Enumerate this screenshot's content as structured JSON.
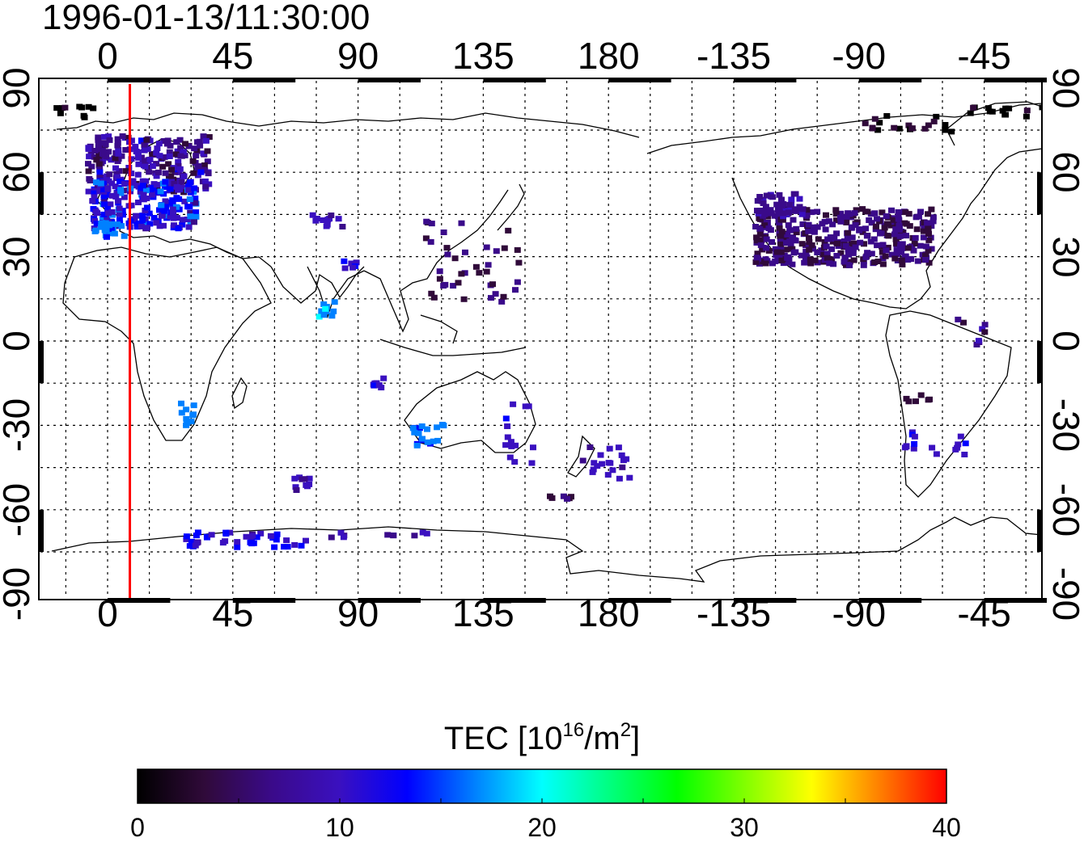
{
  "title": "1996-01-13/11:30:00",
  "lon_ticks": [
    "0",
    "45",
    "90",
    "135",
    "180",
    "-135",
    "-90",
    "-45"
  ],
  "lat_ticks": [
    "90",
    "60",
    "30",
    "0",
    "-30",
    "-60",
    "-90"
  ],
  "colorbar": {
    "label_main": "TEC  [10",
    "label_exp1": "16",
    "label_mid": "/m",
    "label_exp2": "2",
    "label_end": "]",
    "ticks": [
      "0",
      "10",
      "20",
      "30",
      "40"
    ],
    "min": 0,
    "max": 40,
    "stops": [
      "#000000",
      "#300a3a",
      "#3a0a8a",
      "#3a10c0",
      "#0000ff",
      "#0080ff",
      "#00ffff",
      "#00ff80",
      "#00ff00",
      "#80ff00",
      "#ffff00",
      "#ff8000",
      "#ff0000"
    ]
  },
  "map": {
    "lon_range": [
      -20,
      340
    ],
    "lat_range": [
      -90,
      90
    ],
    "grid": "dotted, 15 degrees",
    "marker_line_lon": 8,
    "marker_line_color": "#ff0000"
  }
}
